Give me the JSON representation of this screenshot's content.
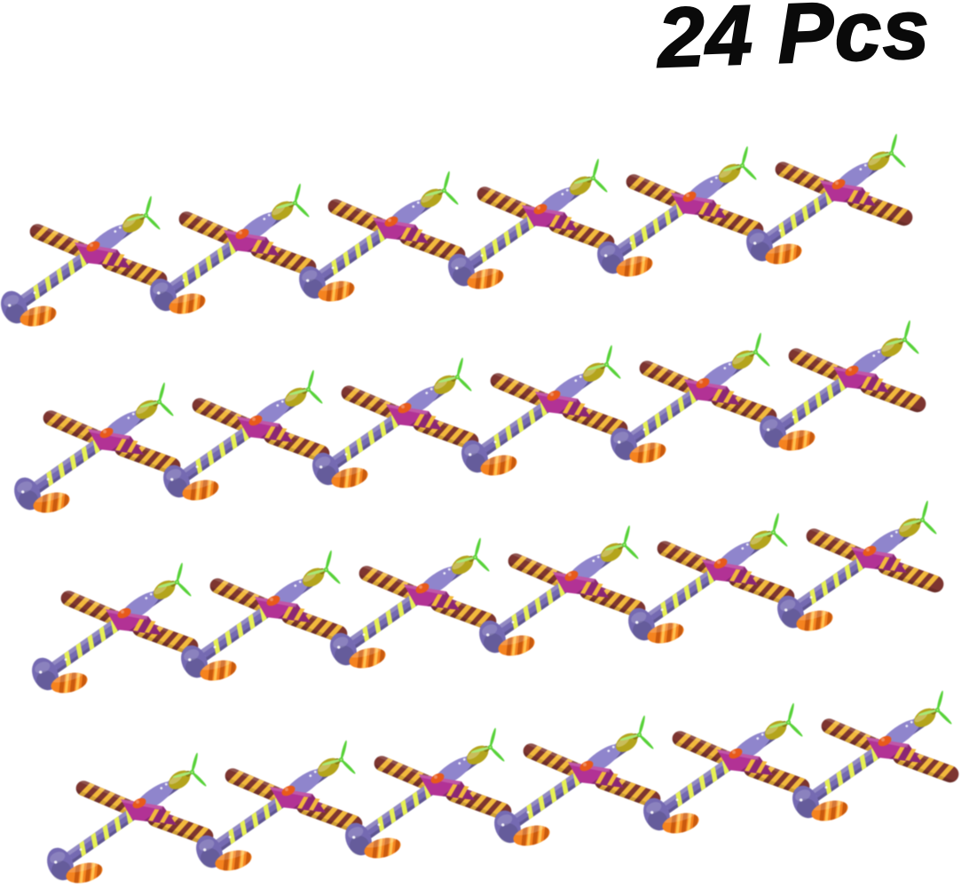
{
  "badge": {
    "label": "24 Pcs"
  },
  "scene": {
    "item": "foam-glider-toy-plane",
    "total_count": 24,
    "rows": 4,
    "planes_per_row": 6,
    "colors": {
      "bg": "#ffffff",
      "text": "#0a0a0a",
      "fuselage": "#756ab2",
      "fuselight": "#8f85cc",
      "chevron": "#e7f055",
      "maroon": "#7d3530",
      "goldstripe": "#f2b93c",
      "magenta": "#b23295",
      "magentadeep": "#8a2170",
      "olive": "#b4a41c",
      "olivedark": "#8a7d12",
      "prop": "#58d23a",
      "proplight": "#a9e876",
      "orange": "#f5831f",
      "orangedark": "#c95a0e",
      "orangelight": "#ffc14f",
      "cliporange": "#e85a1a"
    }
  }
}
